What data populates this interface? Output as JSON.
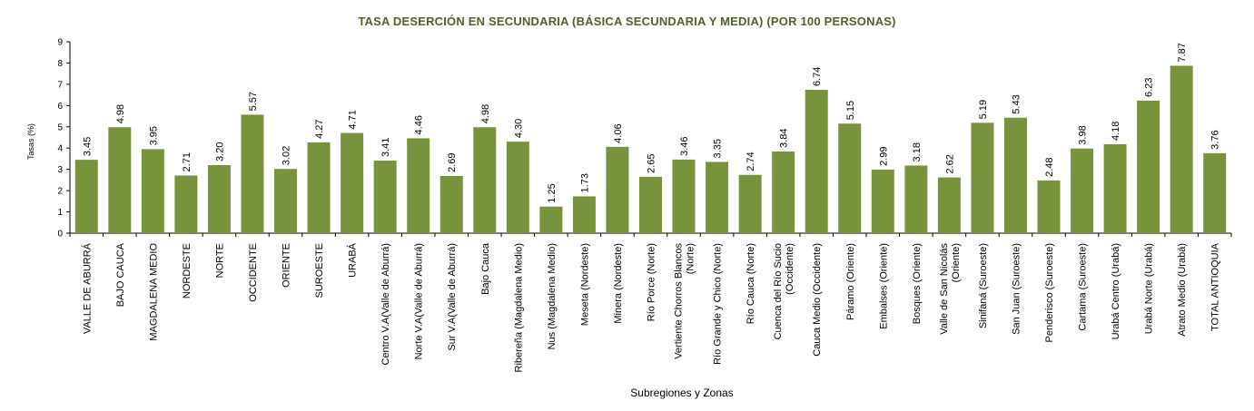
{
  "chart_data": {
    "type": "bar",
    "title": "TASA DESERCIÓN EN SECUNDARIA (BÁSICA SECUNDARIA Y MEDIA) (POR 100 PERSONAS)",
    "xlabel": "Subregiones y Zonas",
    "ylabel": "Tasas (%)",
    "ylim": [
      0,
      9
    ],
    "yticks": [
      0,
      1,
      2,
      3,
      4,
      5,
      6,
      7,
      8,
      9
    ],
    "grid": false,
    "bar_color": "#77933C",
    "title_color": "#4F6228",
    "categories": [
      [
        "VALLE DE ABURRÁ"
      ],
      [
        "BAJO CAUCA"
      ],
      [
        "MAGDALENA MEDIO"
      ],
      [
        "NORDESTE"
      ],
      [
        "NORTE"
      ],
      [
        "OCCIDENTE"
      ],
      [
        "ORIENTE"
      ],
      [
        "SUROESTE"
      ],
      [
        "URABÁ"
      ],
      [
        "Centro V.A(Valle de Aburrá)"
      ],
      [
        "Norte V.A(Valle de Aburrá)"
      ],
      [
        "Sur V.A(Valle de Aburrá)"
      ],
      [
        "Bajo Cauca"
      ],
      [
        "Ribereña (Magdalena Medio)"
      ],
      [
        "Nus (Magdalena Medio)"
      ],
      [
        "Meseta (Nordeste)"
      ],
      [
        "Minera (Nordeste)"
      ],
      [
        "Río Porce (Norte)"
      ],
      [
        "Vertiente Chorros Blancos",
        "(Norte)"
      ],
      [
        "Río Grande y Chico (Norte)"
      ],
      [
        "Río Cauca (Norte)"
      ],
      [
        "Cuenca del Río Sucio",
        "(Occidente)"
      ],
      [
        "Cauca Medio (Occidente)"
      ],
      [
        "Páramo (Oriente)"
      ],
      [
        "Embalses (Oriente)"
      ],
      [
        "Bosques (Oriente)"
      ],
      [
        "Valle de San Nicolás",
        "(Oriente)"
      ],
      [
        "Sinifaná (Suroeste)"
      ],
      [
        "San Juan (Suroeste)"
      ],
      [
        "Penderisco (Suroeste)"
      ],
      [
        "Cartama (Suroeste)"
      ],
      [
        "Urabá Centro (Urabá)"
      ],
      [
        "Urabá Norte (Urabá)"
      ],
      [
        "Atrato Medio (Urabá)"
      ],
      [
        "TOTAL ANTIOQUIA"
      ]
    ],
    "values": [
      3.45,
      4.98,
      3.95,
      2.71,
      3.2,
      5.57,
      3.02,
      4.27,
      4.71,
      3.41,
      4.46,
      2.69,
      4.98,
      4.3,
      1.25,
      1.73,
      4.06,
      2.65,
      3.46,
      3.35,
      2.74,
      3.84,
      6.74,
      5.15,
      2.99,
      3.18,
      2.62,
      5.19,
      5.43,
      2.48,
      3.98,
      4.18,
      6.23,
      7.87,
      3.76
    ],
    "value_labels": [
      "3.45",
      "4.98",
      "3.95",
      "2.71",
      "3.20",
      "5.57",
      "3.02",
      "4.27",
      "4.71",
      "3.41",
      "4.46",
      "2.69",
      "4.98",
      "4.30",
      "1.25",
      "1.73",
      "4.06",
      "2.65",
      "3.46",
      "3.35",
      "2.74",
      "3.84",
      "6.74",
      "5.15",
      "2.99",
      "3.18",
      "2.62",
      "5.19",
      "5.43",
      "2.48",
      "3.98",
      "4.18",
      "6.23",
      "7.87",
      "3.76"
    ]
  }
}
